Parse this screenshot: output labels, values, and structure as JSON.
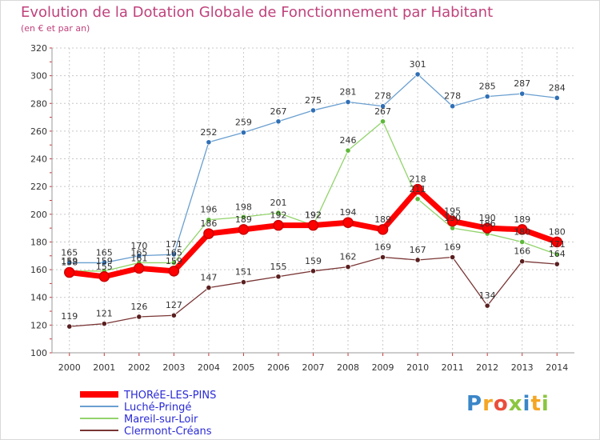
{
  "chart_data": {
    "type": "line",
    "title": "Evolution de la Dotation Globale de Fonctionnement par Habitant",
    "subtitle": "(en € et par an)",
    "xlabel": "",
    "ylabel": "",
    "categories": [
      "2000",
      "2001",
      "2002",
      "2003",
      "2004",
      "2005",
      "2006",
      "2007",
      "2008",
      "2009",
      "2010",
      "2011",
      "2012",
      "2013",
      "2014"
    ],
    "ylim": [
      100,
      320
    ],
    "yticks": [
      100,
      120,
      140,
      160,
      180,
      200,
      220,
      240,
      260,
      280,
      300,
      320
    ],
    "grid": true,
    "legend_position": "bottom-left",
    "series": [
      {
        "name": "THORéE-LES-PINS",
        "color": "#ff0000",
        "marker": "#cc0000",
        "values": [
          158,
          155,
          161,
          159,
          186,
          189,
          192,
          192,
          194,
          189,
          218,
          195,
          190,
          189,
          180
        ]
      },
      {
        "name": "Luché-Pringé",
        "color": "#6a9fd0",
        "marker": "#2f6fb5",
        "values": [
          165,
          165,
          170,
          171,
          252,
          259,
          267,
          275,
          281,
          278,
          301,
          278,
          285,
          287,
          284
        ]
      },
      {
        "name": "Mareil-sur-Loir",
        "color": "#92d36b",
        "marker": "#5eb83a",
        "values": [
          159,
          159,
          165,
          165,
          196,
          198,
          201,
          192,
          246,
          267,
          211,
          190,
          186,
          180,
          171
        ]
      },
      {
        "name": "Clermont-Créans",
        "color": "#7a3535",
        "marker": "#5a1f1f",
        "values": [
          119,
          121,
          126,
          127,
          147,
          151,
          155,
          159,
          162,
          169,
          167,
          169,
          134,
          166,
          164
        ]
      }
    ]
  },
  "branding": {
    "letters": [
      "P",
      "r",
      "o",
      "x",
      "i",
      "t",
      "i"
    ]
  }
}
